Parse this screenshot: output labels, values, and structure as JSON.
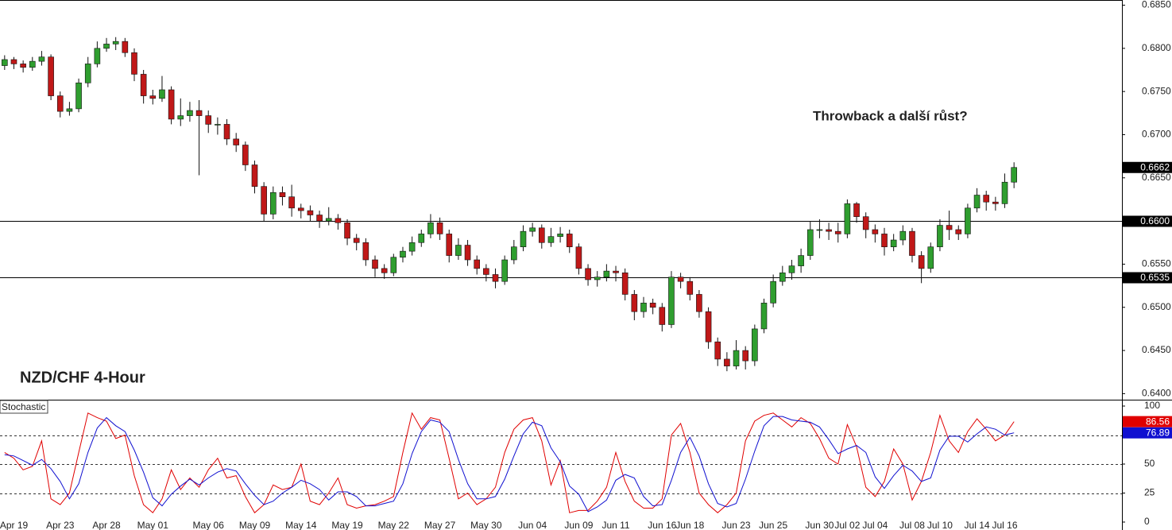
{
  "chart_data": [
    {
      "type": "candlestick",
      "title": "NZD/CHF 4-Hour",
      "annotation": "Throwback a další růst?",
      "colors": {
        "up": "#2f9e2f",
        "down": "#c01818"
      },
      "ylim": [
        0.6393,
        0.6856
      ],
      "yticks": [
        {
          "value": 0.685,
          "label": "0.6850"
        },
        {
          "value": 0.68,
          "label": "0.6800"
        },
        {
          "value": 0.675,
          "label": "0.6750"
        },
        {
          "value": 0.67,
          "label": "0.6700"
        },
        {
          "value": 0.665,
          "label": "0.6650"
        },
        {
          "value": 0.66,
          "label": "0.6600"
        },
        {
          "value": 0.655,
          "label": "0.6550"
        },
        {
          "value": 0.65,
          "label": "0.6500"
        },
        {
          "value": 0.645,
          "label": "0.6450"
        },
        {
          "value": 0.64,
          "label": "0.6400"
        }
      ],
      "hlines": [
        {
          "value": 0.66,
          "label": "0.6600"
        },
        {
          "value": 0.6535,
          "label": "0.6535"
        }
      ],
      "last_price": 0.6662,
      "open": [
        0.678,
        0.6787,
        0.6782,
        0.6778,
        0.6785,
        0.679,
        0.6745,
        0.6727,
        0.673,
        0.676,
        0.6782,
        0.68,
        0.6805,
        0.6808,
        0.6795,
        0.677,
        0.6745,
        0.6742,
        0.6752,
        0.6718,
        0.6722,
        0.6728,
        0.6722,
        0.6712,
        0.6712,
        0.6695,
        0.6688,
        0.6665,
        0.664,
        0.6608,
        0.6633,
        0.6628,
        0.6615,
        0.6612,
        0.6607,
        0.66,
        0.6603,
        0.6598,
        0.658,
        0.6575,
        0.6555,
        0.6545,
        0.654,
        0.6558,
        0.6565,
        0.6575,
        0.6585,
        0.6598,
        0.6585,
        0.656,
        0.6572,
        0.6555,
        0.6545,
        0.6538,
        0.653,
        0.6555,
        0.657,
        0.6588,
        0.6592,
        0.6575,
        0.6582,
        0.6585,
        0.657,
        0.6545,
        0.6532,
        0.6535,
        0.6542,
        0.654,
        0.6515,
        0.6495,
        0.6505,
        0.65,
        0.648,
        0.6535,
        0.653,
        0.6515,
        0.6495,
        0.646,
        0.644,
        0.6432,
        0.645,
        0.6438,
        0.6475,
        0.6505,
        0.653,
        0.654,
        0.6548,
        0.656,
        0.659,
        0.659,
        0.6588,
        0.6585,
        0.662,
        0.6605,
        0.659,
        0.6585,
        0.657,
        0.6578,
        0.6588,
        0.656,
        0.6545,
        0.657,
        0.6595,
        0.659,
        0.6585,
        0.6615,
        0.663,
        0.6622,
        0.662,
        0.6645
      ],
      "high": [
        0.6792,
        0.679,
        0.6786,
        0.679,
        0.6797,
        0.6793,
        0.675,
        0.6738,
        0.6765,
        0.679,
        0.6808,
        0.6812,
        0.6813,
        0.6812,
        0.68,
        0.6775,
        0.6752,
        0.6768,
        0.6756,
        0.6742,
        0.6738,
        0.674,
        0.6728,
        0.672,
        0.6718,
        0.6702,
        0.6692,
        0.667,
        0.6645,
        0.664,
        0.664,
        0.6642,
        0.662,
        0.6618,
        0.6612,
        0.6616,
        0.6608,
        0.6602,
        0.6585,
        0.658,
        0.656,
        0.655,
        0.6562,
        0.657,
        0.6582,
        0.659,
        0.6608,
        0.6604,
        0.659,
        0.658,
        0.6578,
        0.656,
        0.655,
        0.6545,
        0.656,
        0.6578,
        0.6595,
        0.6598,
        0.6596,
        0.6592,
        0.6593,
        0.659,
        0.6574,
        0.655,
        0.6542,
        0.655,
        0.6548,
        0.6545,
        0.652,
        0.6512,
        0.651,
        0.6505,
        0.6542,
        0.654,
        0.6535,
        0.652,
        0.65,
        0.6465,
        0.6448,
        0.6462,
        0.6455,
        0.648,
        0.651,
        0.6538,
        0.6548,
        0.6555,
        0.6568,
        0.66,
        0.6602,
        0.6598,
        0.6598,
        0.6625,
        0.6622,
        0.661,
        0.6596,
        0.6592,
        0.6585,
        0.6595,
        0.6592,
        0.6565,
        0.6575,
        0.6602,
        0.6612,
        0.6595,
        0.662,
        0.6638,
        0.6635,
        0.6628,
        0.6655,
        0.6668
      ],
      "low": [
        0.6775,
        0.6776,
        0.6772,
        0.6774,
        0.678,
        0.674,
        0.672,
        0.6722,
        0.6726,
        0.6755,
        0.6778,
        0.6796,
        0.6798,
        0.679,
        0.6762,
        0.6736,
        0.6735,
        0.6738,
        0.6712,
        0.671,
        0.6715,
        0.6653,
        0.6702,
        0.67,
        0.6688,
        0.668,
        0.6658,
        0.6632,
        0.66,
        0.6602,
        0.6618,
        0.6605,
        0.6603,
        0.66,
        0.6592,
        0.6595,
        0.659,
        0.6572,
        0.6566,
        0.6548,
        0.6535,
        0.6533,
        0.6536,
        0.6552,
        0.656,
        0.657,
        0.658,
        0.6578,
        0.6552,
        0.6555,
        0.6548,
        0.6538,
        0.653,
        0.6522,
        0.6526,
        0.655,
        0.6565,
        0.6582,
        0.6568,
        0.657,
        0.6575,
        0.6563,
        0.6538,
        0.6525,
        0.6524,
        0.653,
        0.653,
        0.6508,
        0.6485,
        0.6488,
        0.6492,
        0.6472,
        0.6476,
        0.6522,
        0.6508,
        0.6488,
        0.6452,
        0.6432,
        0.6426,
        0.6428,
        0.6428,
        0.6432,
        0.647,
        0.65,
        0.6525,
        0.6532,
        0.654,
        0.6555,
        0.658,
        0.6578,
        0.6575,
        0.658,
        0.6598,
        0.658,
        0.6575,
        0.656,
        0.6565,
        0.6572,
        0.6552,
        0.6528,
        0.654,
        0.6565,
        0.6578,
        0.6578,
        0.658,
        0.661,
        0.6612,
        0.6612,
        0.6615,
        0.6638
      ],
      "close": [
        0.6787,
        0.6782,
        0.6778,
        0.6785,
        0.679,
        0.6745,
        0.6727,
        0.673,
        0.676,
        0.6782,
        0.68,
        0.6805,
        0.6808,
        0.6795,
        0.677,
        0.6745,
        0.6742,
        0.6752,
        0.6718,
        0.6722,
        0.6728,
        0.6722,
        0.6712,
        0.6712,
        0.6695,
        0.6688,
        0.6665,
        0.664,
        0.6608,
        0.6633,
        0.6628,
        0.6615,
        0.6612,
        0.6607,
        0.66,
        0.6603,
        0.6598,
        0.658,
        0.6575,
        0.6555,
        0.6545,
        0.654,
        0.6558,
        0.6565,
        0.6575,
        0.6585,
        0.6598,
        0.6585,
        0.656,
        0.6572,
        0.6555,
        0.6545,
        0.6538,
        0.653,
        0.6555,
        0.657,
        0.6588,
        0.6592,
        0.6575,
        0.6582,
        0.6585,
        0.657,
        0.6545,
        0.6532,
        0.6535,
        0.6542,
        0.654,
        0.6515,
        0.6495,
        0.6505,
        0.65,
        0.648,
        0.6535,
        0.653,
        0.6515,
        0.6495,
        0.646,
        0.644,
        0.6432,
        0.645,
        0.6438,
        0.6475,
        0.6505,
        0.653,
        0.654,
        0.6548,
        0.656,
        0.659,
        0.659,
        0.6588,
        0.6585,
        0.662,
        0.6605,
        0.659,
        0.6585,
        0.657,
        0.6578,
        0.6588,
        0.656,
        0.6545,
        0.657,
        0.6595,
        0.659,
        0.6585,
        0.6615,
        0.663,
        0.6622,
        0.662,
        0.6645,
        0.6662
      ]
    },
    {
      "type": "line",
      "title": "Stochastic",
      "ylim": [
        0,
        100
      ],
      "yticks": [
        100,
        75,
        50,
        25,
        0
      ],
      "levels": [
        75,
        50,
        25
      ],
      "categories": [
        null,
        "Apr 19",
        null,
        null,
        null,
        null,
        "Apr 23",
        null,
        null,
        null,
        null,
        "Apr 28",
        null,
        null,
        null,
        null,
        "May 01",
        null,
        null,
        null,
        null,
        null,
        "May 06",
        null,
        null,
        null,
        null,
        "May 09",
        null,
        null,
        null,
        null,
        "May 14",
        null,
        null,
        null,
        null,
        "May 19",
        null,
        null,
        null,
        null,
        "May 22",
        null,
        null,
        null,
        null,
        "May 27",
        null,
        null,
        null,
        null,
        "May 30",
        null,
        null,
        null,
        null,
        "Jun 04",
        null,
        null,
        null,
        null,
        "Jun 09",
        null,
        null,
        null,
        "Jun 11",
        null,
        null,
        null,
        null,
        "Jun 16",
        null,
        null,
        "Jun 18",
        null,
        null,
        null,
        null,
        "Jun 23",
        null,
        null,
        null,
        "Jun 25",
        null,
        null,
        null,
        null,
        "Jun 30",
        null,
        null,
        "Jul 02",
        null,
        null,
        "Jul 04",
        null,
        null,
        null,
        "Jul 08",
        null,
        null,
        "Jul 10",
        null,
        null,
        null,
        "Jul 14",
        null,
        null,
        "Jul 16",
        null
      ],
      "series": [
        {
          "color": "#e00000",
          "values": [
            60,
            55,
            45,
            48,
            70,
            20,
            15,
            25,
            60,
            94,
            90,
            87,
            72,
            75,
            40,
            15,
            8,
            20,
            45,
            28,
            38,
            30,
            45,
            55,
            38,
            40,
            22,
            8,
            15,
            32,
            28,
            30,
            50,
            18,
            15,
            25,
            38,
            15,
            12,
            14,
            15,
            18,
            22,
            60,
            94,
            80,
            90,
            88,
            55,
            20,
            25,
            15,
            20,
            30,
            60,
            80,
            88,
            90,
            70,
            32,
            53,
            8,
            10,
            10,
            18,
            30,
            60,
            35,
            18,
            12,
            12,
            20,
            75,
            85,
            60,
            25,
            15,
            8,
            15,
            25,
            70,
            87,
            92,
            94,
            88,
            82,
            90,
            85,
            72,
            55,
            50,
            84,
            65,
            30,
            22,
            35,
            63,
            50,
            19,
            35,
            60,
            92,
            70,
            60,
            78,
            89,
            80,
            70,
            75,
            86.56
          ]
        },
        {
          "color": "#1010d0",
          "values": [
            58,
            57,
            53,
            49,
            54,
            46,
            35,
            20,
            33,
            60,
            81,
            90,
            83,
            78,
            62,
            43,
            21,
            14,
            24,
            31,
            37,
            32,
            38,
            43,
            46,
            44,
            33,
            23,
            15,
            18,
            25,
            30,
            36,
            33,
            28,
            19,
            26,
            26,
            22,
            14,
            14,
            16,
            18,
            33,
            59,
            78,
            88,
            86,
            78,
            54,
            33,
            20,
            20,
            22,
            37,
            57,
            76,
            86,
            83,
            64,
            52,
            31,
            24,
            9,
            13,
            19,
            36,
            41,
            38,
            22,
            14,
            15,
            36,
            60,
            73,
            57,
            33,
            16,
            13,
            16,
            37,
            61,
            83,
            91,
            91,
            88,
            87,
            86,
            82,
            71,
            59,
            63,
            66,
            60,
            39,
            29,
            40,
            49,
            44,
            35,
            38,
            62,
            74,
            74,
            69,
            76,
            82,
            80,
            75,
            76.89
          ]
        }
      ]
    }
  ]
}
